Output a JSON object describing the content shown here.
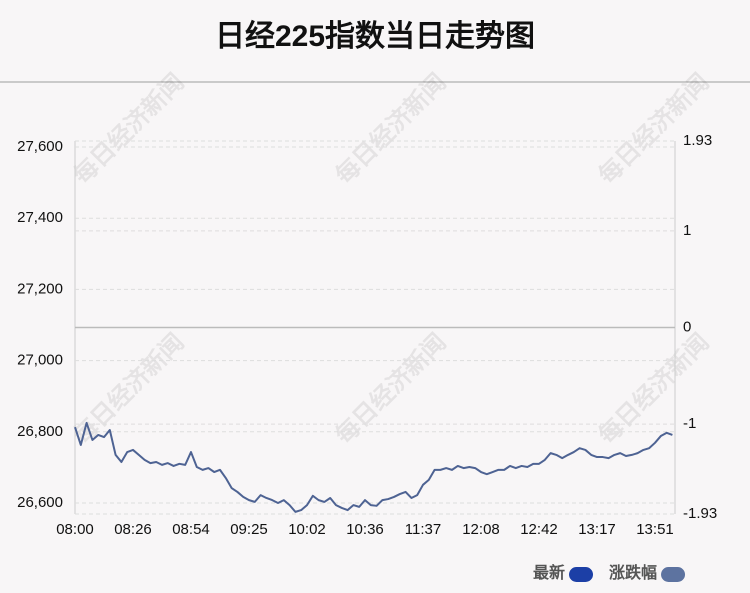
{
  "chart_data": {
    "type": "line",
    "title": "日经225指数当日走势图",
    "watermark": "每日经济新闻",
    "categories": [
      "08:00",
      null,
      null,
      null,
      null,
      null,
      null,
      null,
      null,
      null,
      "08:26",
      null,
      null,
      null,
      null,
      null,
      null,
      null,
      null,
      null,
      "08:54",
      null,
      null,
      null,
      null,
      null,
      null,
      null,
      null,
      null,
      "09:25",
      null,
      null,
      null,
      null,
      null,
      null,
      null,
      null,
      null,
      "10:02",
      null,
      null,
      null,
      null,
      null,
      null,
      null,
      null,
      null,
      "10:36",
      null,
      null,
      null,
      null,
      null,
      null,
      null,
      null,
      null,
      "11:37",
      null,
      null,
      null,
      null,
      null,
      null,
      null,
      null,
      null,
      "12:08",
      null,
      null,
      null,
      null,
      null,
      null,
      null,
      null,
      null,
      "12:42",
      null,
      null,
      null,
      null,
      null,
      null,
      null,
      null,
      null,
      "13:17",
      null,
      null,
      null,
      null,
      null,
      null,
      null,
      null,
      null,
      "13:51",
      null,
      null,
      null
    ],
    "series": [
      {
        "name": "最新",
        "color": "#4e6393",
        "values": [
          26813,
          26763,
          26825,
          26777,
          26791,
          26785,
          26805,
          26735,
          26715,
          26743,
          26749,
          26735,
          26721,
          26712,
          26715,
          26707,
          26712,
          26704,
          26710,
          26707,
          26743,
          26701,
          26693,
          26698,
          26687,
          26693,
          26670,
          26642,
          26631,
          26617,
          26608,
          26603,
          26622,
          26614,
          26608,
          26600,
          26608,
          26594,
          26575,
          26580,
          26594,
          26620,
          26608,
          26603,
          26614,
          26594,
          26586,
          26580,
          26594,
          26589,
          26608,
          26594,
          26592,
          26608,
          26611,
          26617,
          26625,
          26631,
          26614,
          26622,
          26651,
          26665,
          26693,
          26693,
          26698,
          26693,
          26704,
          26698,
          26701,
          26698,
          26687,
          26681,
          26687,
          26693,
          26693,
          26704,
          26698,
          26704,
          26701,
          26710,
          26710,
          26721,
          26740,
          26735,
          26726,
          26735,
          26743,
          26754,
          26749,
          26735,
          26729,
          26729,
          26726,
          26735,
          26740,
          26732,
          26735,
          26740,
          26749,
          26754,
          26769,
          26788,
          26797,
          26791
        ]
      }
    ],
    "legend": [
      {
        "name": "最新",
        "color": "#1c3fa6"
      },
      {
        "name": "涨跌幅",
        "color": "#5d73a0"
      }
    ],
    "ylim": [
      26569,
      27617
    ],
    "yticks": [
      {
        "value": 26600,
        "label": "26,600"
      },
      {
        "value": 26800,
        "label": "26,800"
      },
      {
        "value": 27000,
        "label": "27,000"
      },
      {
        "value": 27200,
        "label": "27,200"
      },
      {
        "value": 27400,
        "label": "27,400"
      },
      {
        "value": 27600,
        "label": "27,600"
      }
    ],
    "y2lim": [
      -1.93,
      1.93
    ],
    "y2ticks": [
      -1.93,
      -1,
      0,
      1,
      1.93
    ],
    "grid": true
  }
}
